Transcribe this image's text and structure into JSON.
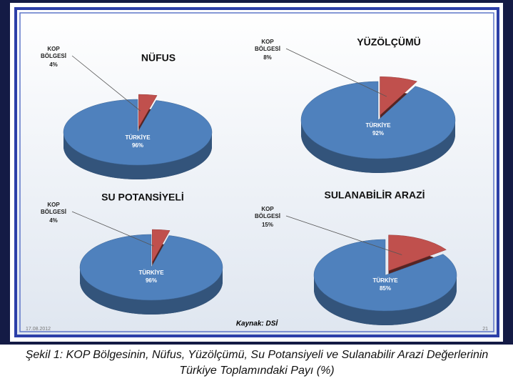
{
  "chart_data": [
    {
      "type": "pie",
      "title": "NÜFUS",
      "categories": [
        "KOP BÖLGESİ",
        "TÜRKİYE"
      ],
      "values": [
        4,
        96
      ],
      "value_labels": [
        "4%",
        "96%"
      ],
      "colors": [
        "#c0504d",
        "#4f81bd"
      ]
    },
    {
      "type": "pie",
      "title": "YÜZÖLÇÜMÜ",
      "categories": [
        "KOP BÖLGESİ",
        "TÜRKİYE"
      ],
      "values": [
        8,
        92
      ],
      "value_labels": [
        "8%",
        "92%"
      ],
      "colors": [
        "#c0504d",
        "#4f81bd"
      ]
    },
    {
      "type": "pie",
      "title": "SU POTANSİYELİ",
      "categories": [
        "KOP BÖLGESİ",
        "TÜRKİYE"
      ],
      "values": [
        4,
        96
      ],
      "value_labels": [
        "4%",
        "96%"
      ],
      "colors": [
        "#c0504d",
        "#4f81bd"
      ]
    },
    {
      "type": "pie",
      "title": "SULANABİLİR  ARAZİ",
      "categories": [
        "KOP BÖLGESİ",
        "TÜRKİYE"
      ],
      "values": [
        15,
        85
      ],
      "value_labels": [
        "15%",
        "85%"
      ],
      "colors": [
        "#c0504d",
        "#4f81bd"
      ]
    }
  ],
  "source": "Kaynak: DSİ",
  "date": "17.08.2012",
  "page_number": "21",
  "caption": "Şekil 1: KOP Bölgesinin, Nüfus, Yüzölçümü, Su Potansiyeli ve Sulanabilir Arazi Değerlerinin Türkiye Toplamındaki Payı (%)"
}
